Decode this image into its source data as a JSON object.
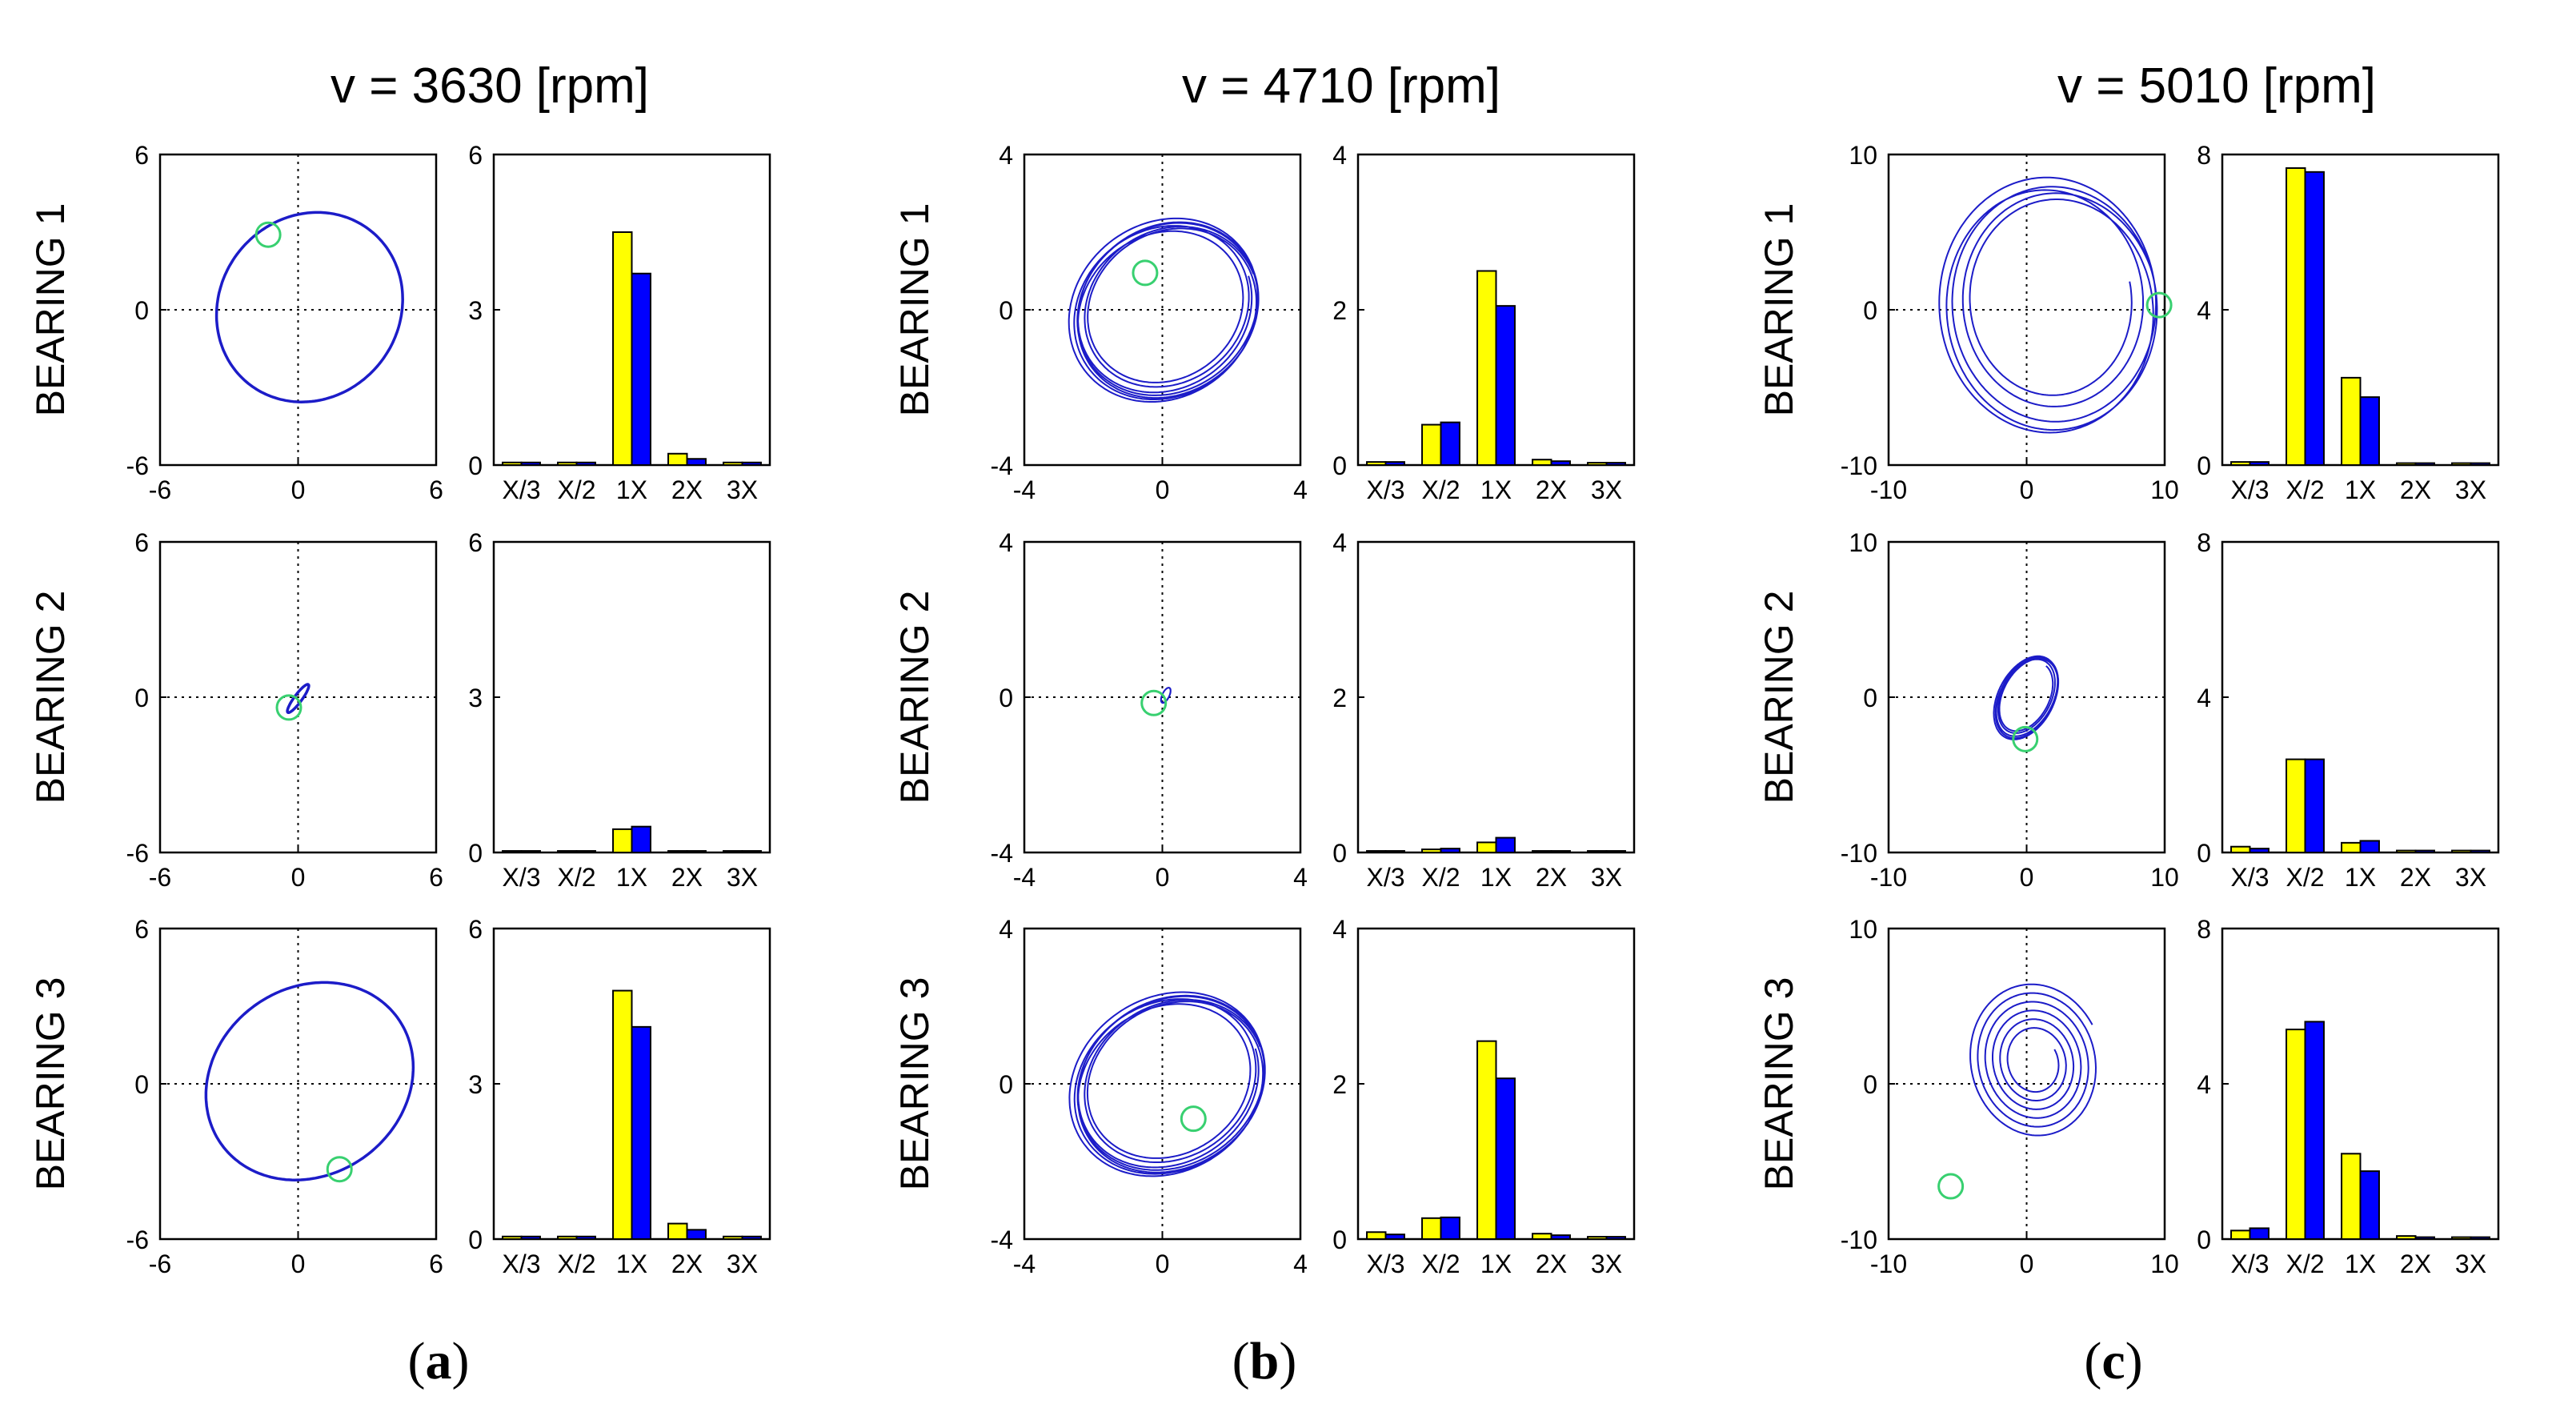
{
  "figure": {
    "colors": {
      "series_a": "#ffff00",
      "series_b": "#0000ff",
      "orbit": "#1c1cc8",
      "marker": "#38d070",
      "frame": "#000000",
      "grid": "#000000"
    },
    "panel_labels": [
      {
        "open": "(",
        "letter": "a",
        "close": ")"
      },
      {
        "open": "(",
        "letter": "b",
        "close": ")"
      },
      {
        "open": "(",
        "letter": "c",
        "close": ")"
      }
    ]
  },
  "chart_data": [
    {
      "title": "v = 3630 [rpm]",
      "orbit_limits": [
        -6,
        6
      ],
      "orbit_ticks": [
        "-6",
        "0",
        "6"
      ],
      "bar_ylim": [
        0,
        6
      ],
      "bar_ticks": [
        "0",
        "3",
        "6"
      ],
      "rows": [
        {
          "row_label": "BEARING 1",
          "orbit": {
            "type": "line",
            "xlabel": "",
            "ylabel": "",
            "shape": "ellipse",
            "cx": 0.5,
            "cy": 0.1,
            "rx": 4.1,
            "ry": 3.6,
            "rot": 20,
            "loops": 1,
            "gap": 0,
            "marker": [
              -1.3,
              2.9
            ]
          },
          "bars": {
            "type": "bar",
            "categories": [
              "X/3",
              "X/2",
              "1X",
              "2X",
              "3X"
            ],
            "series": [
              {
                "name": "yellow",
                "values": [
                  0.05,
                  0.05,
                  4.5,
                  0.22,
                  0.05
                ]
              },
              {
                "name": "blue",
                "values": [
                  0.05,
                  0.05,
                  3.7,
                  0.12,
                  0.05
                ]
              }
            ]
          }
        },
        {
          "row_label": "BEARING 2",
          "orbit": {
            "type": "line",
            "xlabel": "",
            "ylabel": "",
            "shape": "ellipse",
            "cx": 0.0,
            "cy": -0.05,
            "rx": 0.7,
            "ry": 0.16,
            "rot": 50,
            "loops": 1,
            "gap": 0,
            "marker": [
              -0.4,
              -0.4
            ]
          },
          "bars": {
            "type": "bar",
            "categories": [
              "X/3",
              "X/2",
              "1X",
              "2X",
              "3X"
            ],
            "series": [
              {
                "name": "yellow",
                "values": [
                  0.03,
                  0.03,
                  0.45,
                  0.03,
                  0.03
                ]
              },
              {
                "name": "blue",
                "values": [
                  0.03,
                  0.03,
                  0.5,
                  0.03,
                  0.03
                ]
              }
            ]
          }
        },
        {
          "row_label": "BEARING 3",
          "orbit": {
            "type": "line",
            "xlabel": "",
            "ylabel": "",
            "shape": "ellipse",
            "cx": 0.5,
            "cy": 0.1,
            "rx": 4.6,
            "ry": 3.7,
            "rot": 20,
            "loops": 1,
            "gap": 0,
            "marker": [
              1.8,
              -3.3
            ]
          },
          "bars": {
            "type": "bar",
            "categories": [
              "X/3",
              "X/2",
              "1X",
              "2X",
              "3X"
            ],
            "series": [
              {
                "name": "yellow",
                "values": [
                  0.05,
                  0.05,
                  4.8,
                  0.3,
                  0.05
                ]
              },
              {
                "name": "blue",
                "values": [
                  0.05,
                  0.05,
                  4.1,
                  0.18,
                  0.05
                ]
              }
            ]
          }
        }
      ]
    },
    {
      "title": "v = 4710 [rpm]",
      "orbit_limits": [
        -4,
        4
      ],
      "orbit_ticks": [
        "-4",
        "0",
        "4"
      ],
      "bar_ylim": [
        0,
        4
      ],
      "bar_ticks": [
        "0",
        "2",
        "4"
      ],
      "rows": [
        {
          "row_label": "BEARING 1",
          "orbit": {
            "type": "line",
            "xlabel": "",
            "ylabel": "",
            "shape": "ellipse",
            "cx": 0.1,
            "cy": 0.0,
            "rx": 2.7,
            "ry": 2.2,
            "rot": 20,
            "loops": 7,
            "gap": 0.13,
            "marker": [
              -0.5,
              0.95
            ]
          },
          "bars": {
            "type": "bar",
            "categories": [
              "X/3",
              "X/2",
              "1X",
              "2X",
              "3X"
            ],
            "series": [
              {
                "name": "yellow",
                "values": [
                  0.04,
                  0.52,
                  2.5,
                  0.07,
                  0.03
                ]
              },
              {
                "name": "blue",
                "values": [
                  0.04,
                  0.55,
                  2.05,
                  0.05,
                  0.03
                ]
              }
            ]
          }
        },
        {
          "row_label": "BEARING 2",
          "orbit": {
            "type": "line",
            "xlabel": "",
            "ylabel": "",
            "shape": "ellipse",
            "cx": 0.1,
            "cy": 0.05,
            "rx": 0.22,
            "ry": 0.1,
            "rot": 60,
            "loops": 3,
            "gap": 0.03,
            "marker": [
              -0.25,
              -0.15
            ]
          },
          "bars": {
            "type": "bar",
            "categories": [
              "X/3",
              "X/2",
              "1X",
              "2X",
              "3X"
            ],
            "series": [
              {
                "name": "yellow",
                "values": [
                  0.02,
                  0.04,
                  0.13,
                  0.02,
                  0.02
                ]
              },
              {
                "name": "blue",
                "values": [
                  0.02,
                  0.05,
                  0.19,
                  0.02,
                  0.02
                ]
              }
            ]
          }
        },
        {
          "row_label": "BEARING 3",
          "orbit": {
            "type": "line",
            "xlabel": "",
            "ylabel": "",
            "shape": "ellipse",
            "cx": 0.2,
            "cy": 0.0,
            "rx": 2.8,
            "ry": 2.2,
            "rot": 20,
            "loops": 7,
            "gap": 0.12,
            "marker": [
              0.9,
              -0.9
            ]
          },
          "bars": {
            "type": "bar",
            "categories": [
              "X/3",
              "X/2",
              "1X",
              "2X",
              "3X"
            ],
            "series": [
              {
                "name": "yellow",
                "values": [
                  0.09,
                  0.27,
                  2.55,
                  0.07,
                  0.03
                ]
              },
              {
                "name": "blue",
                "values": [
                  0.06,
                  0.28,
                  2.07,
                  0.05,
                  0.03
                ]
              }
            ]
          }
        }
      ]
    },
    {
      "title": "v = 5010 [rpm]",
      "orbit_limits": [
        -10,
        10
      ],
      "orbit_ticks": [
        "-10",
        "0",
        "10"
      ],
      "bar_ylim": [
        0,
        8
      ],
      "bar_ticks": [
        "0",
        "4",
        "8"
      ],
      "rows": [
        {
          "row_label": "BEARING 1",
          "orbit": {
            "type": "line",
            "xlabel": "",
            "ylabel": "",
            "shape": "ellipse",
            "cx": 1.8,
            "cy": 0.3,
            "rx": 7.6,
            "ry": 7.9,
            "rot": 15,
            "loops": 5,
            "gap": 0.18,
            "marker": [
              9.6,
              0.3
            ]
          },
          "bars": {
            "type": "bar",
            "categories": [
              "X/3",
              "X/2",
              "1X",
              "2X",
              "3X"
            ],
            "series": [
              {
                "name": "yellow",
                "values": [
                  0.08,
                  7.65,
                  2.25,
                  0.05,
                  0.05
                ]
              },
              {
                "name": "blue",
                "values": [
                  0.08,
                  7.55,
                  1.75,
                  0.05,
                  0.05
                ]
              }
            ]
          }
        },
        {
          "row_label": "BEARING 2",
          "orbit": {
            "type": "line",
            "xlabel": "",
            "ylabel": "",
            "shape": "ellipse",
            "cx": 0.0,
            "cy": 0.0,
            "rx": 2.9,
            "ry": 1.9,
            "rot": 55,
            "loops": 5,
            "gap": 0.12,
            "marker": [
              -0.1,
              -2.7
            ]
          },
          "bars": {
            "type": "bar",
            "categories": [
              "X/3",
              "X/2",
              "1X",
              "2X",
              "3X"
            ],
            "series": [
              {
                "name": "yellow",
                "values": [
                  0.15,
                  2.4,
                  0.25,
                  0.05,
                  0.05
                ]
              },
              {
                "name": "blue",
                "values": [
                  0.1,
                  2.4,
                  0.3,
                  0.05,
                  0.05
                ]
              }
            ]
          }
        },
        {
          "row_label": "BEARING 3",
          "orbit": {
            "type": "line",
            "xlabel": "",
            "ylabel": "",
            "shape": "spiral",
            "cx": 0.6,
            "cy": 1.4,
            "rx": 4.8,
            "ry": 5.2,
            "rot": 30,
            "loops": 6,
            "gap": 0.11,
            "marker": [
              -5.5,
              -6.6
            ]
          },
          "bars": {
            "type": "bar",
            "categories": [
              "X/3",
              "X/2",
              "1X",
              "2X",
              "3X"
            ],
            "series": [
              {
                "name": "yellow",
                "values": [
                  0.22,
                  5.4,
                  2.2,
                  0.08,
                  0.05
                ]
              },
              {
                "name": "blue",
                "values": [
                  0.28,
                  5.6,
                  1.75,
                  0.05,
                  0.05
                ]
              }
            ]
          }
        }
      ]
    }
  ]
}
